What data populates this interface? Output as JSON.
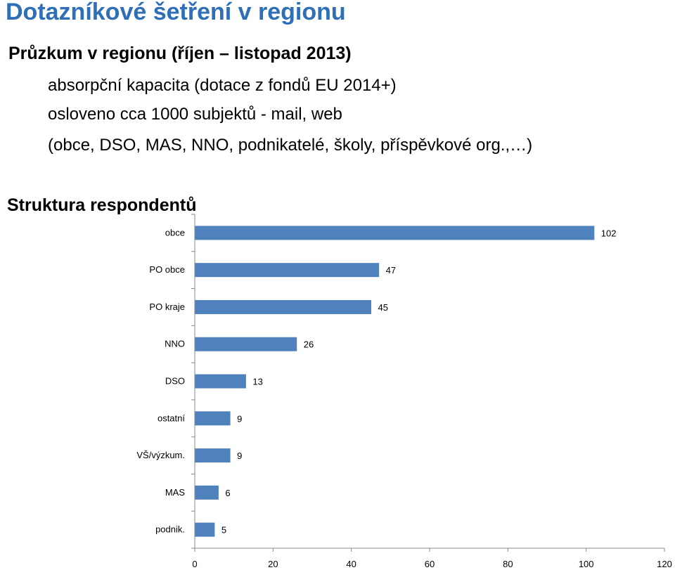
{
  "slide": {
    "title": "Dotazníkové šetření v regionu",
    "survey_heading": "Průzkum v regionu (říjen – listopad 2013)",
    "bullets": [
      "absorpční kapacita (dotace z fondů EU 2014+)",
      "osloveno cca 1000 subjektů - mail, web",
      "(obce, DSO, MAS, NNO, podnikatelé, školy, příspěvkové org.,…)"
    ],
    "section_heading": "Struktura respondentů"
  },
  "chart_data": {
    "type": "bar",
    "orientation": "horizontal",
    "title": "",
    "xlabel": "",
    "ylabel": "",
    "categories": [
      "obce",
      "PO obce",
      "PO kraje",
      "NNO",
      "DSO",
      "ostatní",
      "VŠ/výzkum.",
      "MAS",
      "podnik."
    ],
    "values": [
      102,
      47,
      45,
      26,
      13,
      9,
      9,
      6,
      5
    ],
    "xlim": [
      0,
      120
    ],
    "xticks": [
      0,
      20,
      40,
      60,
      80,
      100,
      120
    ],
    "data_labels": true,
    "grid": false,
    "legend": "none",
    "bar_color": "#4f81bd"
  }
}
